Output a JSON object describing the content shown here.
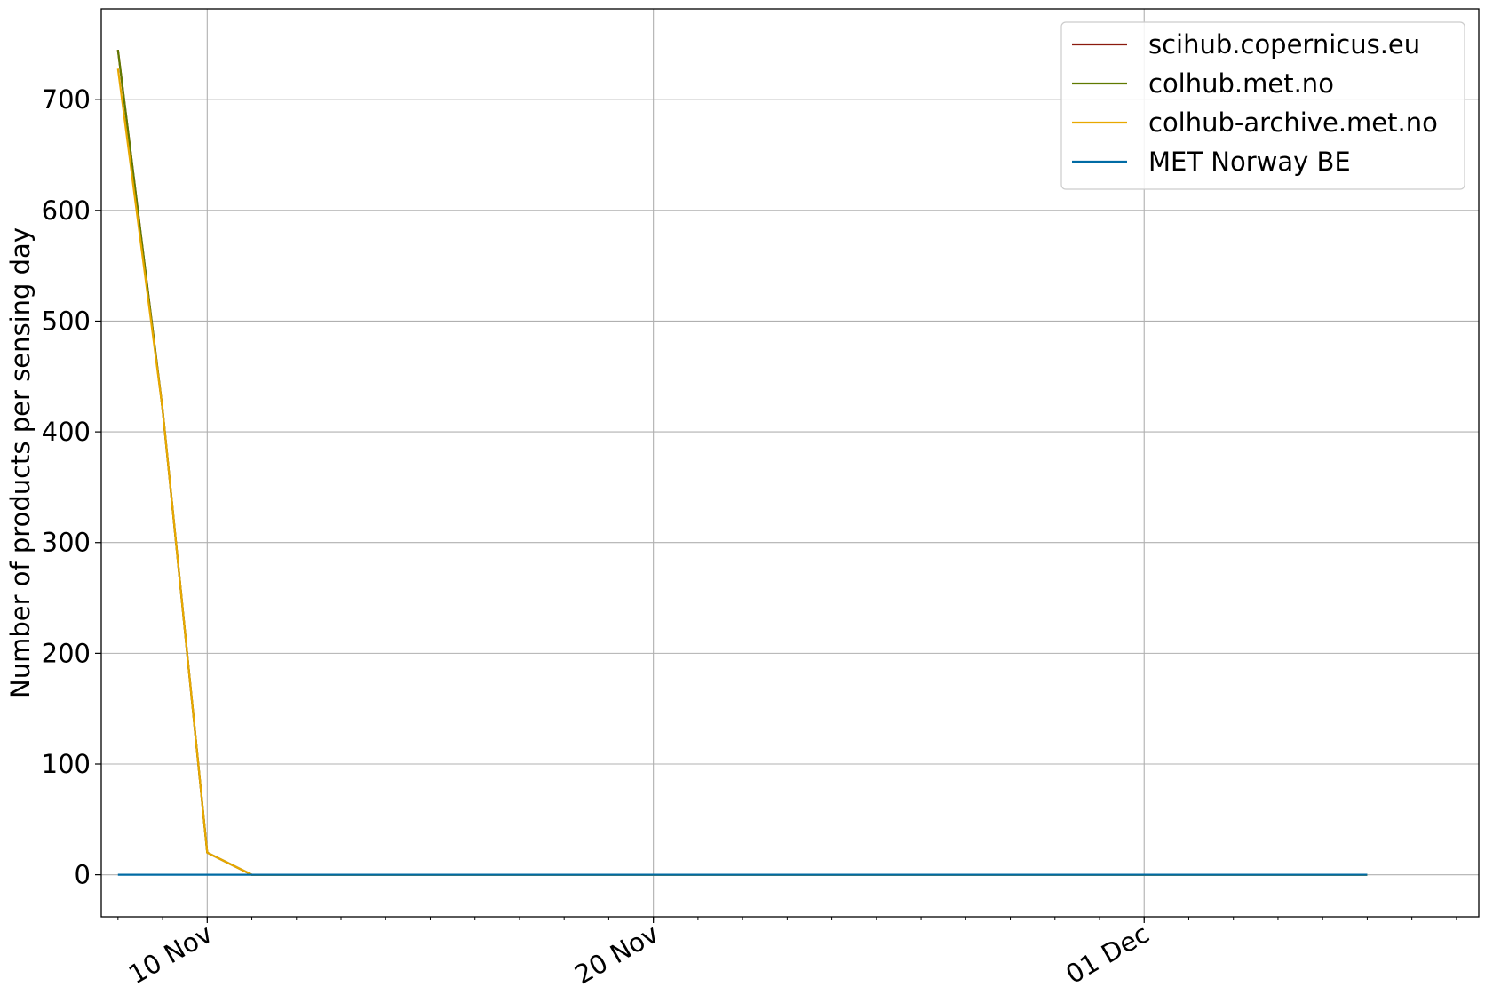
{
  "chart_data": {
    "type": "line",
    "title": "",
    "xlabel": "",
    "ylabel": "Number of products per sensing day",
    "x_axis_type": "date",
    "xlim": [
      "2022-11-07T15:00:00",
      "2022-12-08T12:00:00"
    ],
    "ylim": [
      -38,
      782
    ],
    "y_ticks": [
      0,
      100,
      200,
      300,
      400,
      500,
      600,
      700
    ],
    "y_tick_labels": [
      "0",
      "100",
      "200",
      "300",
      "400",
      "500",
      "600",
      "700"
    ],
    "x_ticks": [
      "2022-11-10",
      "2022-11-20",
      "2022-12-01"
    ],
    "x_tick_labels": [
      "10 Nov",
      "20 Nov",
      "01 Dec"
    ],
    "x_tick_rotation": "rotated 30 degrees",
    "grid": true,
    "legend_position": "top-right",
    "x": [
      "2022-11-08",
      "2022-11-09",
      "2022-11-10",
      "2022-11-11",
      "2022-11-12",
      "2022-11-13",
      "2022-11-14",
      "2022-11-15",
      "2022-11-16",
      "2022-11-17",
      "2022-11-18",
      "2022-11-19",
      "2022-11-20",
      "2022-11-21",
      "2022-11-22",
      "2022-11-23",
      "2022-11-24",
      "2022-11-25",
      "2022-11-26",
      "2022-11-27",
      "2022-11-28",
      "2022-11-29",
      "2022-11-30",
      "2022-12-01",
      "2022-12-02",
      "2022-12-03",
      "2022-12-04",
      "2022-12-05",
      "2022-12-06"
    ],
    "series": [
      {
        "name": "scihub.copernicus.eu",
        "color": "#8b1a0e",
        "values": [
          745,
          420,
          20,
          0,
          0,
          0,
          0,
          0,
          0,
          0,
          0,
          0,
          0,
          0,
          0,
          0,
          0,
          0,
          0,
          0,
          0,
          0,
          0,
          0,
          0,
          0,
          0,
          0,
          0
        ]
      },
      {
        "name": "colhub.met.no",
        "color": "#5f7a00",
        "values": [
          745,
          420,
          20,
          0,
          0,
          0,
          0,
          0,
          0,
          0,
          0,
          0,
          0,
          0,
          0,
          0,
          0,
          0,
          0,
          0,
          0,
          0,
          0,
          0,
          0,
          0,
          0,
          0,
          0
        ]
      },
      {
        "name": "colhub-archive.met.no",
        "color": "#e8a800",
        "values": [
          728,
          420,
          20,
          0,
          0,
          0,
          0,
          0,
          0,
          0,
          0,
          0,
          0,
          0,
          0,
          0,
          0,
          0,
          0,
          0,
          0,
          0,
          0,
          0,
          0,
          0,
          0,
          0,
          0
        ]
      },
      {
        "name": "MET Norway BE",
        "color": "#006ba4",
        "values": [
          0,
          0,
          0,
          0,
          0,
          0,
          0,
          0,
          0,
          0,
          0,
          0,
          0,
          0,
          0,
          0,
          0,
          0,
          0,
          0,
          0,
          0,
          0,
          0,
          0,
          0,
          0,
          0,
          0
        ]
      }
    ]
  }
}
